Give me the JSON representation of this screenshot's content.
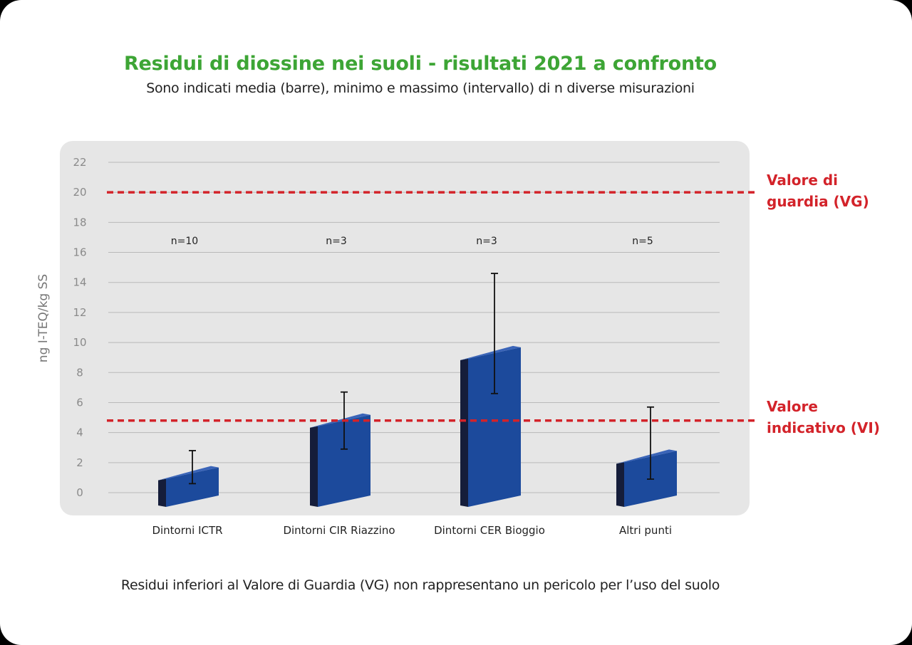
{
  "chart_data": {
    "type": "bar",
    "title": "Residui di diossine nei suoli - risultati 2021 a confronto",
    "subtitle": "Sono indicati media (barre), minimo e massimo (intervallo) di n diverse misurazioni",
    "ylabel": "ng I-TEQ/kg SS",
    "ylim": [
      0,
      22
    ],
    "yticks": [
      0,
      2,
      4,
      6,
      8,
      10,
      12,
      14,
      16,
      18,
      20,
      22
    ],
    "grid": true,
    "categories": [
      "Dintorni ICTR",
      "Dintorni CIR Riazzino",
      "Dintorni CER Bioggio",
      "Altri punti"
    ],
    "n_labels": [
      "n=10",
      "n=3",
      "n=3",
      "n=5"
    ],
    "values": [
      1.3,
      4.8,
      9.3,
      2.4
    ],
    "min": [
      0.6,
      2.9,
      6.6,
      0.9
    ],
    "max": [
      2.8,
      6.7,
      14.6,
      5.7
    ],
    "bar_color": "#1c4a9c",
    "reference_lines": [
      {
        "value": 20,
        "label_lines": [
          "Valore di",
          "guardia (VG)"
        ],
        "color": "#d3232a"
      },
      {
        "value": 4.8,
        "label_lines": [
          "Valore",
          "indicativo (VI)"
        ],
        "color": "#d3232a"
      }
    ]
  },
  "footer": "Residui inferiori al Valore di Guardia (VG) non rappresentano un pericolo per l’uso del suolo"
}
